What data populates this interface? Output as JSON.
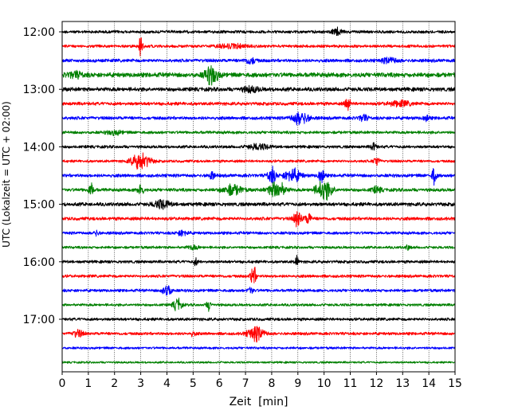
{
  "chart_data": {
    "type": "line",
    "title": "",
    "xlabel": "Zeit  [min]",
    "ylabel": "UTC (Lokalzeit = UTC + 02:00)",
    "xlim": [
      0,
      15
    ],
    "x_ticks": [
      "0",
      "1",
      "2",
      "3",
      "4",
      "5",
      "6",
      "7",
      "8",
      "9",
      "10",
      "11",
      "12",
      "13",
      "14",
      "15"
    ],
    "y_tick_labels": [
      "12:00",
      "13:00",
      "14:00",
      "15:00",
      "16:00",
      "17:00"
    ],
    "y_tick_trace_index": [
      0,
      4,
      8,
      12,
      16,
      20
    ],
    "grid": "vertical dotted lines at each minute",
    "colors": [
      "#000000",
      "#ff0000",
      "#0000ff",
      "#008000"
    ],
    "trace_interval_min": 15,
    "traces": [
      {
        "start": "12:00",
        "color": "#000000",
        "noise": 0.22,
        "events": [
          {
            "t": 10.5,
            "amp": 0.5,
            "width": 0.2
          }
        ]
      },
      {
        "start": "12:15",
        "color": "#ff0000",
        "noise": 0.22,
        "events": [
          {
            "t": 3.0,
            "amp": 1.5,
            "width": 0.08
          },
          {
            "t": 6.5,
            "amp": 0.3,
            "width": 0.5
          }
        ]
      },
      {
        "start": "12:30",
        "color": "#0000ff",
        "noise": 0.25,
        "events": [
          {
            "t": 7.2,
            "amp": 0.5,
            "width": 0.2
          },
          {
            "t": 12.5,
            "amp": 0.4,
            "width": 0.3
          }
        ]
      },
      {
        "start": "12:45",
        "color": "#008000",
        "noise": 0.35,
        "events": [
          {
            "t": 5.7,
            "amp": 1.3,
            "width": 0.25
          },
          {
            "t": 0.5,
            "amp": 0.4,
            "width": 0.3
          }
        ]
      },
      {
        "start": "13:00",
        "color": "#000000",
        "noise": 0.3,
        "events": [
          {
            "t": 7.2,
            "amp": 0.4,
            "width": 0.3
          }
        ]
      },
      {
        "start": "13:15",
        "color": "#ff0000",
        "noise": 0.25,
        "events": [
          {
            "t": 10.9,
            "amp": 0.9,
            "width": 0.1
          },
          {
            "t": 12.9,
            "amp": 0.4,
            "width": 0.4
          }
        ]
      },
      {
        "start": "13:30",
        "color": "#0000ff",
        "noise": 0.25,
        "events": [
          {
            "t": 9.1,
            "amp": 1.0,
            "width": 0.3
          },
          {
            "t": 11.5,
            "amp": 0.5,
            "width": 0.15
          },
          {
            "t": 13.9,
            "amp": 0.5,
            "width": 0.1
          }
        ]
      },
      {
        "start": "13:45",
        "color": "#008000",
        "noise": 0.22,
        "events": [
          {
            "t": 2.0,
            "amp": 0.3,
            "width": 0.3
          }
        ]
      },
      {
        "start": "14:00",
        "color": "#000000",
        "noise": 0.22,
        "events": [
          {
            "t": 7.5,
            "amp": 0.4,
            "width": 0.4
          },
          {
            "t": 11.9,
            "amp": 0.7,
            "width": 0.1
          }
        ]
      },
      {
        "start": "14:15",
        "color": "#ff0000",
        "noise": 0.2,
        "events": [
          {
            "t": 3.0,
            "amp": 1.2,
            "width": 0.35
          },
          {
            "t": 12.0,
            "amp": 0.8,
            "width": 0.1
          }
        ]
      },
      {
        "start": "14:30",
        "color": "#0000ff",
        "noise": 0.25,
        "events": [
          {
            "t": 8.0,
            "amp": 1.2,
            "width": 0.15
          },
          {
            "t": 8.8,
            "amp": 1.0,
            "width": 0.3
          },
          {
            "t": 9.9,
            "amp": 1.3,
            "width": 0.1
          },
          {
            "t": 14.2,
            "amp": 1.5,
            "width": 0.08
          },
          {
            "t": 5.7,
            "amp": 0.6,
            "width": 0.1
          }
        ]
      },
      {
        "start": "14:45",
        "color": "#008000",
        "noise": 0.25,
        "events": [
          {
            "t": 1.1,
            "amp": 1.0,
            "width": 0.1
          },
          {
            "t": 3.0,
            "amp": 1.0,
            "width": 0.1
          },
          {
            "t": 6.5,
            "amp": 0.8,
            "width": 0.35
          },
          {
            "t": 8.2,
            "amp": 1.3,
            "width": 0.3
          },
          {
            "t": 10.0,
            "amp": 1.5,
            "width": 0.3
          },
          {
            "t": 12.0,
            "amp": 0.4,
            "width": 0.2
          }
        ]
      },
      {
        "start": "15:00",
        "color": "#000000",
        "noise": 0.28,
        "events": [
          {
            "t": 3.8,
            "amp": 0.6,
            "width": 0.3
          }
        ]
      },
      {
        "start": "15:15",
        "color": "#ff0000",
        "noise": 0.25,
        "events": [
          {
            "t": 9.0,
            "amp": 1.2,
            "width": 0.15
          },
          {
            "t": 9.4,
            "amp": 0.9,
            "width": 0.1
          }
        ]
      },
      {
        "start": "15:30",
        "color": "#0000ff",
        "noise": 0.22,
        "events": [
          {
            "t": 1.3,
            "amp": 0.4,
            "width": 0.1
          },
          {
            "t": 4.6,
            "amp": 0.4,
            "width": 0.2
          }
        ]
      },
      {
        "start": "15:45",
        "color": "#008000",
        "noise": 0.2,
        "events": [
          {
            "t": 5.0,
            "amp": 0.3,
            "width": 0.2
          },
          {
            "t": 13.2,
            "amp": 0.3,
            "width": 0.1
          }
        ]
      },
      {
        "start": "16:00",
        "color": "#000000",
        "noise": 0.22,
        "events": [
          {
            "t": 5.1,
            "amp": 0.5,
            "width": 0.08
          },
          {
            "t": 8.95,
            "amp": 1.1,
            "width": 0.06
          }
        ]
      },
      {
        "start": "16:15",
        "color": "#ff0000",
        "noise": 0.22,
        "events": [
          {
            "t": 7.3,
            "amp": 1.6,
            "width": 0.1
          }
        ]
      },
      {
        "start": "16:30",
        "color": "#0000ff",
        "noise": 0.22,
        "events": [
          {
            "t": 4.0,
            "amp": 1.1,
            "width": 0.15
          },
          {
            "t": 7.2,
            "amp": 0.5,
            "width": 0.1
          }
        ]
      },
      {
        "start": "16:45",
        "color": "#008000",
        "noise": 0.2,
        "events": [
          {
            "t": 4.4,
            "amp": 1.0,
            "width": 0.15
          },
          {
            "t": 5.6,
            "amp": 0.8,
            "width": 0.08
          }
        ]
      },
      {
        "start": "17:00",
        "color": "#000000",
        "noise": 0.22,
        "events": []
      },
      {
        "start": "17:15",
        "color": "#ff0000",
        "noise": 0.22,
        "events": [
          {
            "t": 0.6,
            "amp": 0.5,
            "width": 0.2
          },
          {
            "t": 7.4,
            "amp": 1.1,
            "width": 0.3
          },
          {
            "t": 5.0,
            "amp": 0.3,
            "width": 0.1
          }
        ]
      },
      {
        "start": "17:30",
        "color": "#0000ff",
        "noise": 0.18,
        "events": []
      },
      {
        "start": "17:45",
        "color": "#008000",
        "noise": 0.15,
        "events": []
      }
    ]
  }
}
